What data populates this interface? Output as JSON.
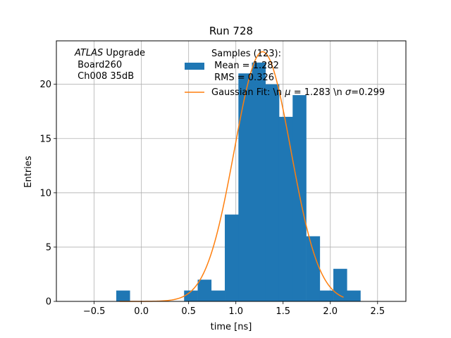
{
  "chart_data": {
    "type": "bar",
    "title": "Run 728",
    "xlabel": "time [ns]",
    "ylabel": "Entries",
    "xlim": [
      -0.9,
      2.8
    ],
    "ylim": [
      0,
      24
    ],
    "xticks": [
      -0.5,
      0.0,
      0.5,
      1.0,
      1.5,
      2.0,
      2.5
    ],
    "xtick_labels": [
      "−0.5",
      "0.0",
      "0.5",
      "1.0",
      "1.5",
      "2.0",
      "2.5"
    ],
    "yticks": [
      0,
      5,
      10,
      15,
      20
    ],
    "ytick_labels": [
      "0",
      "5",
      "10",
      "15",
      "20"
    ],
    "grid": true,
    "bin_width": 0.1436,
    "histogram": {
      "name": "Samples (123):",
      "color": "#1f77b4",
      "bins": [
        {
          "x": -0.266,
          "y": 1
        },
        {
          "x": 0.452,
          "y": 1
        },
        {
          "x": 0.596,
          "y": 2
        },
        {
          "x": 0.739,
          "y": 1
        },
        {
          "x": 0.883,
          "y": 8
        },
        {
          "x": 1.027,
          "y": 21
        },
        {
          "x": 1.17,
          "y": 22
        },
        {
          "x": 1.314,
          "y": 20
        },
        {
          "x": 1.457,
          "y": 17
        },
        {
          "x": 1.601,
          "y": 19
        },
        {
          "x": 1.745,
          "y": 6
        },
        {
          "x": 1.888,
          "y": 1
        },
        {
          "x": 2.032,
          "y": 3
        },
        {
          "x": 2.175,
          "y": 1
        }
      ]
    },
    "fit": {
      "color": "#ff7f0e",
      "mu": 1.283,
      "sigma": 0.299,
      "amplitude": 23.0,
      "x_range": [
        -0.23,
        2.14
      ]
    },
    "annotation": {
      "line1_italic": "ATLAS",
      "line1_rest": " Upgrade",
      "line2": " Board260",
      "line3": " Ch008 35dB"
    },
    "legend": {
      "placement": "top-center",
      "hist_lines": [
        "Samples (123):",
        " Mean = 1.282",
        " RMS = 0.326"
      ],
      "fit_prefix": "Gaussian Fit: \\n ",
      "fit_mu_symbol": "μ",
      "fit_mid": " = 1.283 \\n ",
      "fit_sigma_symbol": "σ",
      "fit_suffix": "=0.299"
    }
  }
}
